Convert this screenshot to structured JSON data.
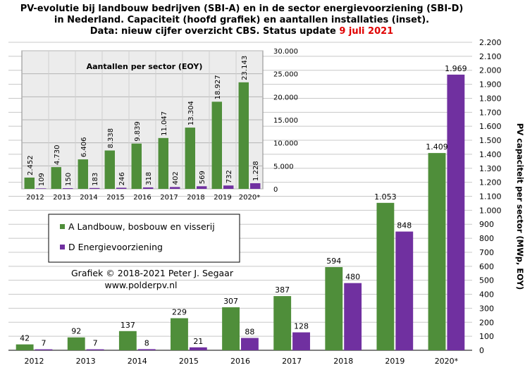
{
  "title": {
    "line1": "PV-evolutie bij landbouw bedrijven (SBI-A) en in de sector energievoorziening (SBI-D)",
    "line2": "in Nederland. Capaciteit (hoofd grafiek) en aantallen installaties (inset).",
    "line3_prefix": "Data: nieuw cijfer overzicht CBS. Status update",
    "line3_date": "9 juli 2021"
  },
  "credit": {
    "line1": "Grafiek © 2018-2021 Peter J. Segaar",
    "line2": "www.polderpv.nl"
  },
  "colors": {
    "A": "#4f8e3a",
    "D": "#7030a0",
    "inset_bg": "#ececec",
    "date": "#e00000"
  },
  "chart_data": [
    {
      "type": "bar",
      "categories": [
        "2012",
        "2013",
        "2014",
        "2015",
        "2016",
        "2017",
        "2018",
        "2019",
        "2020*"
      ],
      "series": [
        {
          "name": "A Landbouw, bosbouw en visserij",
          "values": [
            42,
            92,
            137,
            229,
            307,
            387,
            594,
            1053,
            1409
          ],
          "labels": [
            "42",
            "92",
            "137",
            "229",
            "307",
            "387",
            "594",
            "1.053",
            "1.409"
          ]
        },
        {
          "name": "D Energievoorziening",
          "values": [
            7,
            7,
            8,
            21,
            88,
            128,
            480,
            848,
            1969
          ],
          "labels": [
            "7",
            "7",
            "8",
            "21",
            "88",
            "128",
            "480",
            "848",
            "1.969"
          ]
        }
      ],
      "ylabel": "PV capaciteit per sector (MWp, EOY)",
      "ylim": [
        0,
        2200
      ],
      "yticks": [
        0,
        100,
        200,
        300,
        400,
        500,
        600,
        700,
        800,
        900,
        1000,
        1100,
        1200,
        1300,
        1400,
        1500,
        1600,
        1700,
        1800,
        1900,
        2000,
        2100,
        2200
      ],
      "ytick_labels": [
        "0",
        "100",
        "200",
        "300",
        "400",
        "500",
        "600",
        "700",
        "800",
        "900",
        "1.000",
        "1.100",
        "1.200",
        "1.300",
        "1.400",
        "1.500",
        "1.600",
        "1.700",
        "1.800",
        "1.900",
        "2.000",
        "2.100",
        "2.200"
      ],
      "grid": true,
      "legend": "left-middle"
    },
    {
      "type": "bar",
      "title": "Aantallen per sector (EOY)",
      "categories": [
        "2012",
        "2013",
        "2014",
        "2015",
        "2016",
        "2017",
        "2018",
        "2019",
        "2020*"
      ],
      "series": [
        {
          "name": "A Landbouw, bosbouw en visserij",
          "values": [
            2452,
            4730,
            6406,
            8338,
            9839,
            11047,
            13304,
            18927,
            23143
          ],
          "labels": [
            "2.452",
            "4.730",
            "6.406",
            "8.338",
            "9.839",
            "11.047",
            "13.304",
            "18.927",
            "23.143"
          ]
        },
        {
          "name": "D Energievoorziening",
          "values": [
            109,
            150,
            183,
            246,
            318,
            402,
            569,
            732,
            1228
          ],
          "labels": [
            "109",
            "150",
            "183",
            "246",
            "318",
            "402",
            "569",
            "732",
            "1.228"
          ]
        }
      ],
      "ylim": [
        0,
        30000
      ],
      "yticks": [
        0,
        5000,
        10000,
        15000,
        20000,
        25000,
        30000
      ],
      "ytick_labels": [
        "0",
        "5.000",
        "10.000",
        "15.000",
        "20.000",
        "25.000",
        "30.000"
      ],
      "grid": true
    }
  ]
}
